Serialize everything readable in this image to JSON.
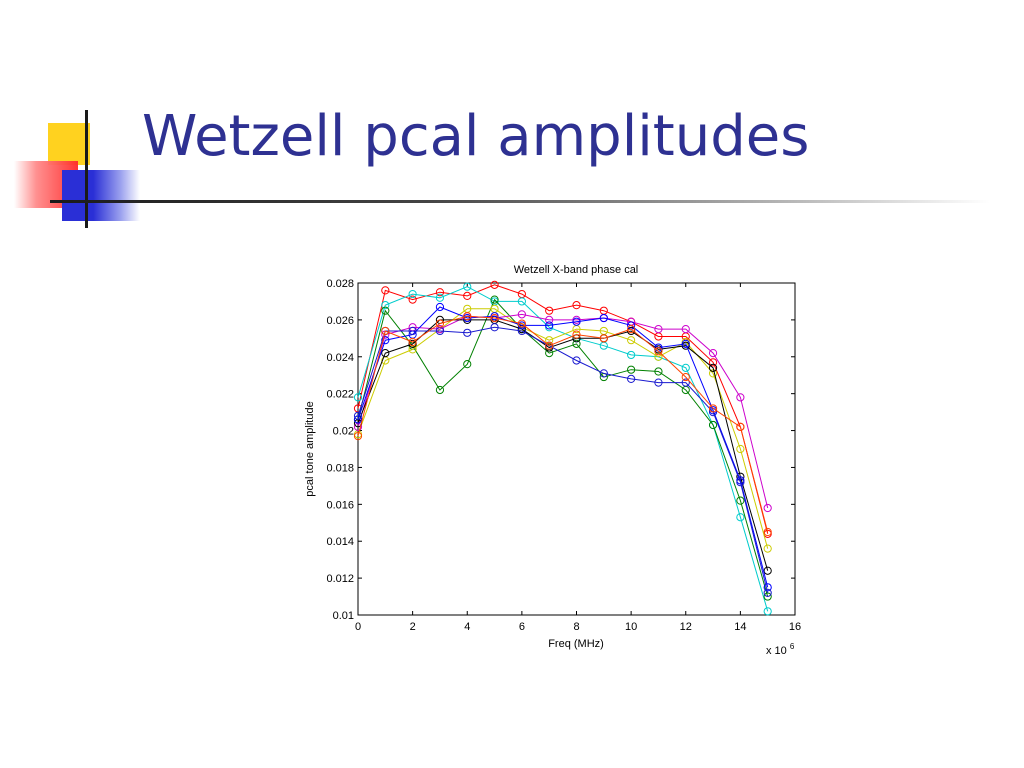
{
  "slide": {
    "title": "Wetzell pcal amplitudes"
  },
  "colors": {
    "title": "#2e3192",
    "deco_yellow": "#ffd21f",
    "deco_red": "#ff3b3b",
    "deco_blue": "#2a2fd6"
  },
  "chart_data": {
    "type": "line",
    "title": "Wetzell X-band phase cal",
    "xlabel": "Freq (MHz)",
    "ylabel": "pcal tone amplitude",
    "x_multiplier": "x 10",
    "x_multiplier_exp": "6",
    "xlim": [
      0,
      16
    ],
    "ylim": [
      0.01,
      0.028
    ],
    "xticks": [
      0,
      2,
      4,
      6,
      8,
      10,
      12,
      14,
      16
    ],
    "xtick_labels": [
      "0",
      "2",
      "4",
      "6",
      "8",
      "10",
      "12",
      "14",
      "16"
    ],
    "yticks": [
      0.01,
      0.012,
      0.014,
      0.016,
      0.018,
      0.02,
      0.022,
      0.024,
      0.026,
      0.028
    ],
    "ytick_labels": [
      "0.01",
      "0.012",
      "0.014",
      "0.016",
      "0.018",
      "0.02",
      "0.022",
      "0.024",
      "0.026",
      "0.028"
    ],
    "grid": false,
    "marker": "circle",
    "x": [
      0,
      1,
      2,
      3,
      4,
      5,
      6,
      7,
      8,
      9,
      10,
      11,
      12,
      13,
      14,
      15
    ],
    "series": [
      {
        "color": "#ff0000",
        "values": [
          0.0212,
          0.0276,
          0.0271,
          0.0275,
          0.0273,
          0.0279,
          0.0274,
          0.0265,
          0.0268,
          0.0265,
          0.0259,
          0.0251,
          0.0251,
          0.0237,
          0.0202,
          0.0144
        ]
      },
      {
        "color": "#00cccc",
        "values": [
          0.0218,
          0.0268,
          0.0274,
          0.0272,
          0.0278,
          0.027,
          0.027,
          0.0256,
          0.025,
          0.0246,
          0.0241,
          0.024,
          0.0234,
          0.0203,
          0.0153,
          0.0102
        ]
      },
      {
        "color": "#008000",
        "values": [
          0.0206,
          0.0265,
          0.0246,
          0.0222,
          0.0236,
          0.0271,
          0.0255,
          0.0242,
          0.0247,
          0.0229,
          0.0233,
          0.0232,
          0.0222,
          0.0203,
          0.0162,
          0.011
        ]
      },
      {
        "color": "#cccc00",
        "values": [
          0.0198,
          0.0238,
          0.0244,
          0.0255,
          0.0266,
          0.0266,
          0.0256,
          0.0249,
          0.0255,
          0.0254,
          0.0249,
          0.024,
          0.0248,
          0.0231,
          0.019,
          0.0136
        ]
      },
      {
        "color": "#cc00cc",
        "values": [
          0.0202,
          0.0252,
          0.0256,
          0.0255,
          0.0262,
          0.0261,
          0.0263,
          0.026,
          0.026,
          0.0261,
          0.0259,
          0.0255,
          0.0255,
          0.0242,
          0.0218,
          0.0158
        ]
      },
      {
        "color": "#000000",
        "values": [
          0.0204,
          0.0242,
          0.0247,
          0.026,
          0.026,
          0.026,
          0.0255,
          0.0245,
          0.025,
          0.025,
          0.0254,
          0.0244,
          0.0246,
          0.0234,
          0.0175,
          0.0124
        ]
      },
      {
        "color": "#0000ff",
        "values": [
          0.0206,
          0.0249,
          0.0252,
          0.0267,
          0.0261,
          0.0262,
          0.0257,
          0.0257,
          0.0259,
          0.0261,
          0.0257,
          0.0245,
          0.0247,
          0.0211,
          0.0173,
          0.0115
        ]
      },
      {
        "color": "#1a1ad0",
        "values": [
          0.0208,
          0.0254,
          0.0254,
          0.0254,
          0.0253,
          0.0256,
          0.0254,
          0.0246,
          0.0238,
          0.0231,
          0.0228,
          0.0226,
          0.0226,
          0.021,
          0.0172,
          0.0112
        ]
      },
      {
        "color": "#ff4400",
        "values": [
          0.0197,
          0.0254,
          0.0248,
          0.0258,
          0.0262,
          0.0261,
          0.0258,
          0.0246,
          0.0252,
          0.025,
          0.0255,
          0.0243,
          0.0229,
          0.0212,
          0.0202,
          0.0145
        ]
      }
    ]
  }
}
